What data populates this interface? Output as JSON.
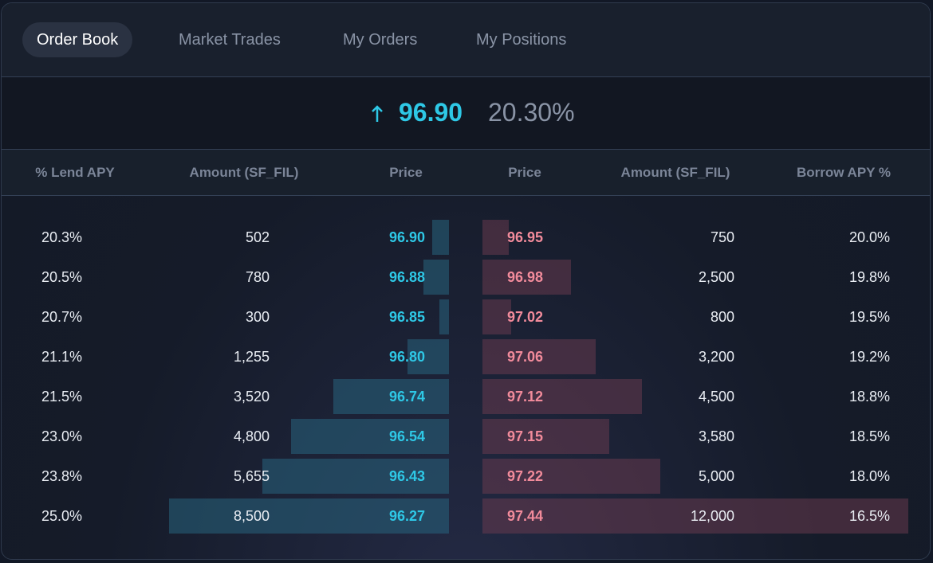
{
  "tabs": [
    "Order Book",
    "Market Trades",
    "My Orders",
    "My Positions"
  ],
  "ticker": {
    "price": "96.90",
    "rate": "20.30%"
  },
  "columns": [
    "% Lend APY",
    "Amount (SF_FIL)",
    "Price",
    "Price",
    "Amount (SF_FIL)",
    "Borrow APY %"
  ],
  "bids": [
    {
      "apy": "20.3%",
      "amount": 502,
      "price": "96.90"
    },
    {
      "apy": "20.5%",
      "amount": 780,
      "price": "96.88"
    },
    {
      "apy": "20.7%",
      "amount": 300,
      "price": "96.85"
    },
    {
      "apy": "21.1%",
      "amount": {
        "value": 1255,
        "label": "1,255"
      },
      "price": "96.80"
    },
    {
      "apy": "21.5%",
      "amount": {
        "value": 3520,
        "label": "3,520"
      },
      "price": "96.74"
    },
    {
      "apy": "23.0%",
      "amount": {
        "value": 4800,
        "label": "4,800"
      },
      "price": "96.54"
    },
    {
      "apy": "23.8%",
      "amount": {
        "value": 5655,
        "label": "5,655"
      },
      "price": "96.43"
    },
    {
      "apy": "25.0%",
      "amount": {
        "value": 8500,
        "label": "8,500"
      },
      "price": "96.27"
    }
  ],
  "asks": [
    {
      "price": "96.95",
      "amount": 750,
      "apy": "20.0%"
    },
    {
      "price": "96.98",
      "amount": {
        "value": 2500,
        "label": "2,500"
      },
      "apy": "19.8%"
    },
    {
      "price": "97.02",
      "amount": 800,
      "apy": "19.5%"
    },
    {
      "price": "97.06",
      "amount": {
        "value": 3200,
        "label": "3,200"
      },
      "apy": "19.2%"
    },
    {
      "price": "97.12",
      "amount": {
        "value": 4500,
        "label": "4,500"
      },
      "apy": "18.8%"
    },
    {
      "price": "97.15",
      "amount": {
        "value": 3580,
        "label": "3,580"
      },
      "apy": "18.5%"
    },
    {
      "price": "97.22",
      "amount": {
        "value": 5000,
        "label": "5,000"
      },
      "apy": "18.0%"
    },
    {
      "price": "97.44",
      "amount": {
        "value": 12000,
        "label": "12,000"
      },
      "apy": "16.5%"
    }
  ]
}
